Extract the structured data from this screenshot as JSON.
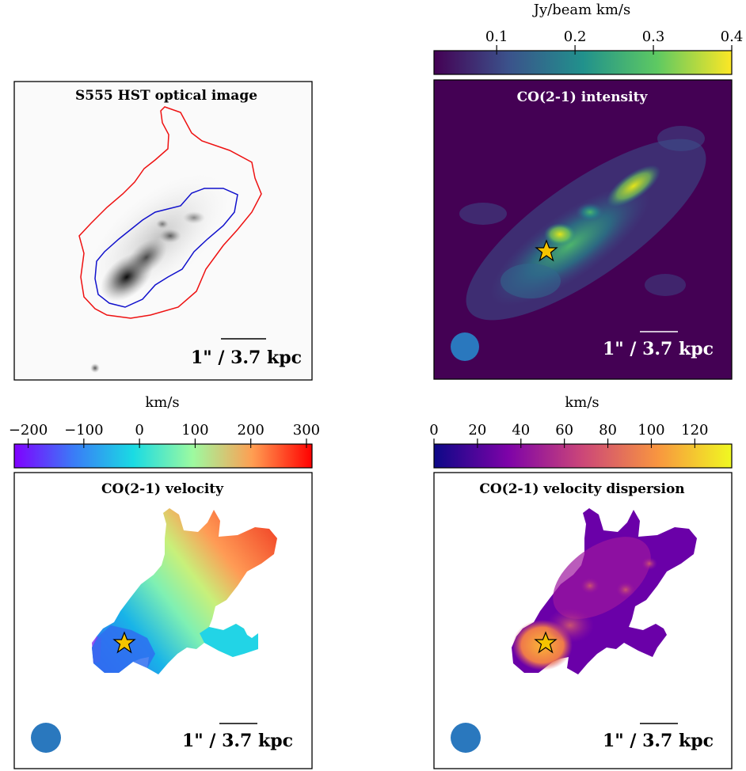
{
  "chart_data": [
    {
      "type": "image",
      "title": "S555 HST optical image",
      "scale_label": "1\" / 3.7 kpc",
      "contour_colors": [
        "#e11",
        "#11c"
      ]
    },
    {
      "type": "heatmap",
      "title": "CO(2-1) intensity",
      "colorbar": {
        "unit": "Jy/beam km/s",
        "range": [
          0.02,
          0.4
        ],
        "ticks": [
          "0.1",
          "0.2",
          "0.3",
          "0.4"
        ],
        "tick_values": [
          0.1,
          0.2,
          0.3,
          0.4
        ],
        "colormap": "viridis"
      },
      "scale_label": "1\" / 3.7 kpc",
      "beam_color": "#2a78be",
      "star_color": "#f5c400"
    },
    {
      "type": "heatmap",
      "title": "CO(2-1) velocity",
      "colorbar": {
        "unit": "km/s",
        "range": [
          -225,
          310
        ],
        "ticks": [
          "−200",
          "−100",
          "0",
          "100",
          "200",
          "300"
        ],
        "tick_values": [
          -200,
          -100,
          0,
          100,
          200,
          300
        ],
        "colormap": "rainbow"
      },
      "scale_label": "1\" / 3.7 kpc",
      "beam_color": "#2a78be",
      "star_color": "#f5c400"
    },
    {
      "type": "heatmap",
      "title": "CO(2-1) velocity dispersion",
      "colorbar": {
        "unit": "km/s",
        "range": [
          0,
          137
        ],
        "ticks": [
          "0",
          "20",
          "40",
          "60",
          "80",
          "100",
          "120"
        ],
        "tick_values": [
          0,
          20,
          40,
          60,
          80,
          100,
          120
        ],
        "colormap": "plasma"
      },
      "scale_label": "1\" / 3.7 kpc",
      "beam_color": "#2a78be",
      "star_color": "#f5c400"
    }
  ]
}
